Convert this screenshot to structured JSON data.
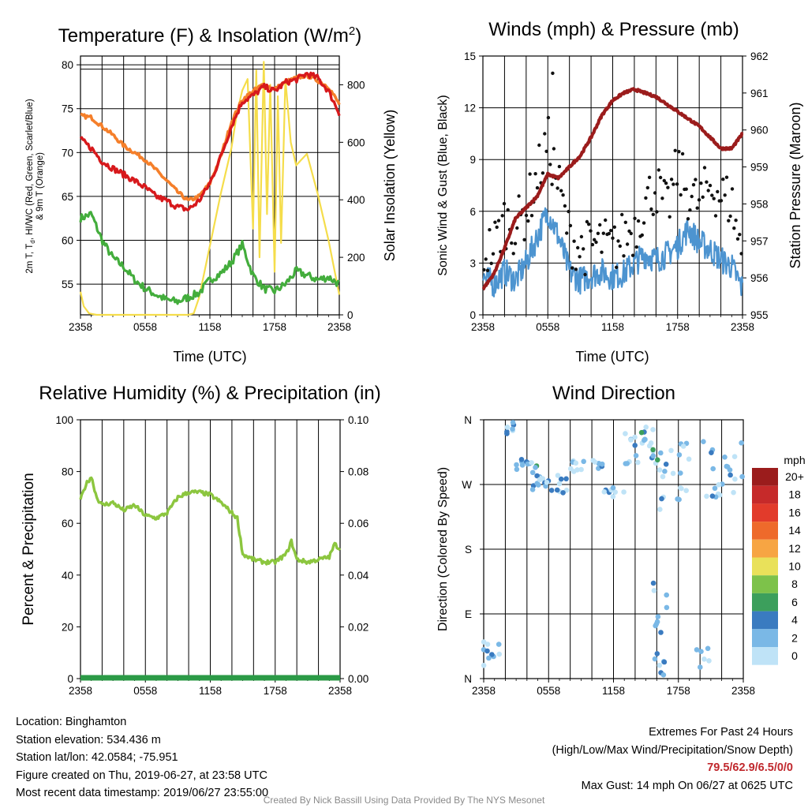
{
  "panels": {
    "temperature": {
      "title": "Temperature (F) & Insolation (W/m2)",
      "title_main": "Temperature (F) & Insolation (W/m",
      "title_sup": "2",
      "title_close": ")"
    },
    "winds": {
      "title": "Winds (mph) & Pressure (mb)"
    },
    "humidity": {
      "title": "Relative Humidity (%) & Precipitation (in)"
    },
    "direction": {
      "title": "Wind Direction"
    }
  },
  "colors": {
    "temp_2m": "#d7191c",
    "temp_9m": "#f57f2a",
    "dewpoint": "#43ad3c",
    "insolation": "#f5dd4b",
    "gust": "#111111",
    "wind": "#4d94d0",
    "pressure": "#9b1c1c",
    "humidity": "#8cc63f",
    "precip": "#2b9a46"
  },
  "speed_legend": {
    "title": "mph",
    "labels": [
      "20+",
      "18",
      "16",
      "14",
      "12",
      "10",
      "8",
      "6",
      "4",
      "2",
      "0"
    ],
    "colors": [
      "#9b1c1c",
      "#c62a2a",
      "#e23b2b",
      "#ee6a2b",
      "#f7a543",
      "#e9e15a",
      "#7dc24a",
      "#3c9f5c",
      "#3a7bc0",
      "#7ab8e6",
      "#bfe3f7"
    ]
  },
  "chart_data": [
    {
      "type": "line",
      "title": "Temperature (F) & Insolation (W/m2)",
      "xlabel": "Time (UTC)",
      "ylabel": "2m T, Td, HI/WC (Red, Green, Scarlet/Blue) & 9m T (Orange)",
      "ylabel_line1": "2m T, T",
      "ylabel_sub": "d",
      "ylabel_line1_rest": ", HI/WC (Red, Green, Scarlet/Blue)",
      "ylabel_line2": "& 9m T (Orange)",
      "y2label": "Solar Insolation (Yellow)",
      "x_ticks": [
        "2358",
        "0558",
        "1158",
        "1758",
        "2358"
      ],
      "x_range_hours": [
        0,
        24
      ],
      "ylim": [
        51.5,
        81
      ],
      "y_ticks": [
        55,
        60,
        65,
        70,
        75,
        80
      ],
      "y2lim": [
        0,
        900
      ],
      "y2_ticks": [
        0,
        200,
        400,
        600,
        800
      ],
      "series": [
        {
          "name": "2m T",
          "axis": "left",
          "x": [
            0,
            1,
            2,
            3,
            4,
            5,
            6,
            7,
            8,
            9,
            10,
            11,
            12,
            13,
            14,
            15,
            16,
            17,
            18,
            19,
            20,
            21,
            22,
            23,
            24
          ],
          "values": [
            71.5,
            70.5,
            69.0,
            68.2,
            67.5,
            66.8,
            66.0,
            65.0,
            64.5,
            63.8,
            63.5,
            64.5,
            66.5,
            69.5,
            73.0,
            75.8,
            76.5,
            77.5,
            77.0,
            78.0,
            78.3,
            79.0,
            78.5,
            77.0,
            74.5
          ]
        },
        {
          "name": "9m T",
          "axis": "left",
          "x": [
            0,
            1,
            2,
            3,
            4,
            5,
            6,
            7,
            8,
            9,
            10,
            11,
            12,
            13,
            14,
            15,
            16,
            17,
            18,
            19,
            20,
            21,
            22,
            23,
            24
          ],
          "values": [
            74.2,
            74.0,
            73.0,
            72.0,
            70.8,
            70.0,
            69.2,
            68.0,
            66.8,
            65.5,
            64.5,
            65.0,
            66.5,
            69.5,
            73.5,
            76.0,
            77.0,
            77.8,
            77.2,
            78.0,
            78.5,
            78.8,
            78.2,
            77.5,
            75.5
          ]
        },
        {
          "name": "Td",
          "axis": "left",
          "x": [
            0,
            1,
            2,
            3,
            4,
            5,
            6,
            7,
            8,
            9,
            10,
            11,
            12,
            13,
            14,
            15,
            16,
            17,
            18,
            19,
            20,
            21,
            22,
            23,
            24
          ],
          "values": [
            62.5,
            63.0,
            60.0,
            58.0,
            57.0,
            55.5,
            54.5,
            53.8,
            53.2,
            53.0,
            53.5,
            54.0,
            55.5,
            56.2,
            57.5,
            59.5,
            56.0,
            54.5,
            54.2,
            55.0,
            56.5,
            56.0,
            55.5,
            55.8,
            55.0
          ]
        },
        {
          "name": "Solar Insolation",
          "axis": "right",
          "x": [
            0,
            0.3,
            0.8,
            1.5,
            3,
            6,
            9,
            10,
            10.5,
            11,
            12,
            13,
            14,
            14.5,
            15,
            15.5,
            16,
            16.3,
            16.6,
            17,
            17.3,
            17.6,
            18,
            18.3,
            18.6,
            19,
            19.5,
            20,
            21,
            22,
            23,
            24
          ],
          "values": [
            80,
            30,
            5,
            0,
            0,
            0,
            0,
            0,
            5,
            60,
            240,
            420,
            580,
            700,
            780,
            820,
            300,
            850,
            200,
            880,
            350,
            800,
            150,
            760,
            250,
            820,
            600,
            520,
            560,
            420,
            260,
            70
          ]
        }
      ]
    },
    {
      "type": "line",
      "title": "Winds (mph) & Pressure (mb)",
      "xlabel": "Time (UTC)",
      "ylabel": "Sonic Wind & Gust (Blue, Black)",
      "y2label": "Station Pressure (Maroon)",
      "x_ticks": [
        "2358",
        "0558",
        "1158",
        "1758",
        "2358"
      ],
      "x_range_hours": [
        0,
        24
      ],
      "ylim": [
        0,
        15
      ],
      "y_ticks": [
        0,
        3,
        6,
        9,
        12,
        15
      ],
      "y2lim": [
        955,
        962
      ],
      "y2_ticks": [
        955,
        956,
        957,
        958,
        959,
        960,
        961,
        962
      ],
      "max_gust": {
        "x": 6.45,
        "value": 14
      },
      "series": [
        {
          "name": "Sonic Wind",
          "axis": "left",
          "x": [
            0,
            1,
            2,
            3,
            4,
            5,
            6,
            7,
            8,
            9,
            10,
            11,
            12,
            13,
            14,
            15,
            16,
            17,
            18,
            19,
            20,
            21,
            22,
            23,
            24
          ],
          "values": [
            2.2,
            1.8,
            2.5,
            2.0,
            3.0,
            4.5,
            6.0,
            4.5,
            2.5,
            2.0,
            2.3,
            2.5,
            2.2,
            2.4,
            3.0,
            3.5,
            3.2,
            3.5,
            4.0,
            5.0,
            4.2,
            3.8,
            3.2,
            2.8,
            1.5
          ]
        },
        {
          "name": "Gust",
          "axis": "left",
          "x": [
            0,
            1,
            2,
            3,
            4,
            5,
            6,
            7,
            8,
            9,
            10,
            11,
            12,
            13,
            14,
            15,
            16,
            17,
            18,
            19,
            20,
            21,
            22,
            23,
            24
          ],
          "values": [
            3.5,
            4.0,
            5.5,
            5.0,
            6.0,
            8.0,
            10.0,
            7.5,
            4.5,
            3.8,
            4.0,
            4.2,
            3.8,
            4.5,
            5.0,
            6.5,
            7.5,
            6.0,
            8.5,
            7.0,
            6.5,
            7.5,
            7.0,
            6.5,
            3.2
          ]
        },
        {
          "name": "Station Pressure",
          "axis": "right",
          "x": [
            0,
            0.5,
            1,
            2,
            3,
            4,
            5,
            6,
            7,
            8,
            9,
            10,
            11,
            12,
            13,
            14,
            15,
            16,
            17,
            18,
            19,
            20,
            21,
            22,
            23,
            24
          ],
          "values": [
            955.7,
            955.9,
            956.1,
            956.8,
            957.6,
            957.9,
            958.2,
            958.8,
            958.7,
            959.0,
            959.3,
            959.8,
            960.4,
            960.8,
            961.0,
            961.1,
            961.0,
            960.9,
            960.7,
            960.5,
            960.3,
            960.1,
            959.8,
            959.5,
            959.5,
            959.9
          ]
        }
      ]
    },
    {
      "type": "line",
      "title": "Relative Humidity (%) & Precipitation (in)",
      "ylabel": "Percent & Precipitation",
      "x_ticks": [
        "2358",
        "0558",
        "1158",
        "1758",
        "2358"
      ],
      "x_range_hours": [
        0,
        24
      ],
      "ylim": [
        0,
        100
      ],
      "y_ticks": [
        0,
        20,
        40,
        60,
        80,
        100
      ],
      "y2lim": [
        0,
        0.1
      ],
      "y2_ticks": [
        "0.00",
        "0.02",
        "0.04",
        "0.06",
        "0.08",
        "0.10"
      ],
      "series": [
        {
          "name": "Relative Humidity",
          "axis": "left",
          "x": [
            0,
            0.5,
            1,
            1.5,
            2,
            3,
            4,
            5,
            6,
            7,
            8,
            9,
            10,
            11,
            12,
            13,
            14,
            14.5,
            15,
            16,
            17,
            18,
            19,
            19.5,
            20,
            21,
            22,
            23,
            23.5,
            24
          ],
          "values": [
            69,
            75,
            78,
            70,
            67,
            68,
            65,
            67,
            63,
            62,
            64,
            70,
            72,
            72,
            71,
            68,
            64,
            62,
            48,
            46,
            45,
            45,
            48,
            53,
            46,
            45,
            46,
            47,
            52,
            50
          ]
        },
        {
          "name": "Precipitation",
          "axis": "right",
          "x": [
            0,
            24
          ],
          "values": [
            0,
            0
          ]
        }
      ]
    },
    {
      "type": "scatter",
      "title": "Wind Direction",
      "ylabel": "Direction (Colored By Speed)",
      "x_ticks": [
        "2358",
        "0558",
        "1158",
        "1758",
        "2358"
      ],
      "x_range_hours": [
        0,
        24
      ],
      "ylim": [
        0,
        360
      ],
      "y_ticks": [
        "N",
        "E",
        "S",
        "W",
        "N"
      ],
      "colorbar": "mph"
    }
  ],
  "station": {
    "location": "Location: Binghamton",
    "elevation": "Station elevation: 534.436 m",
    "latlon": "Station lat/lon: 42.0584; -75.951",
    "created": "Figure created on Thu, 2019-06-27, at 23:58 UTC",
    "recent": "Most recent data timestamp: 2019/06/27 23:55:00"
  },
  "extremes": {
    "title": "Extremes For Past 24 Hours",
    "subtitle": "(High/Low/Max Wind/Precipitation/Snow Depth)",
    "values": "79.5/62.9/6.5/0/0",
    "max_gust": "Max Gust: 14 mph On 06/27 at 0625 UTC"
  },
  "credit": "Created By Nick Bassill Using Data Provided By The NYS Mesonet"
}
